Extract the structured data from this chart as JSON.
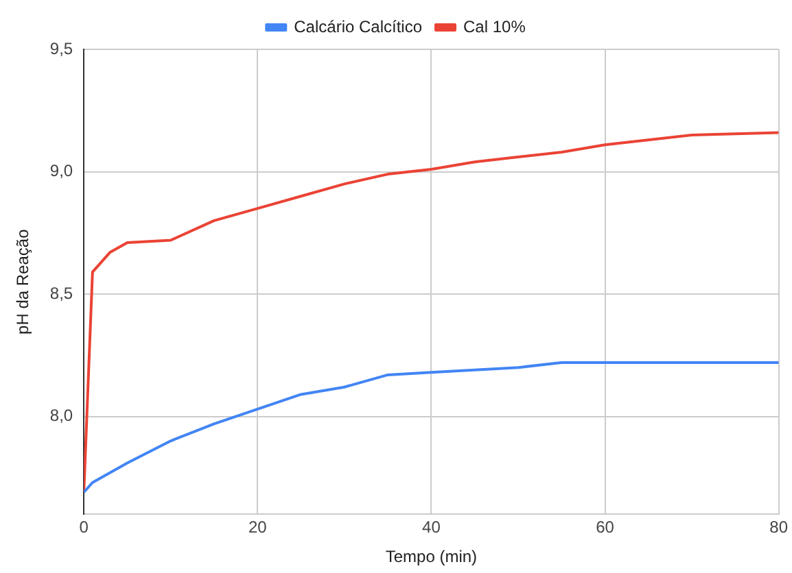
{
  "chart_data": {
    "type": "line",
    "xlabel": "Tempo (min)",
    "ylabel": "pH da Reação",
    "xlim": [
      0,
      80
    ],
    "xticks": [
      0,
      20,
      40,
      60,
      80
    ],
    "ylim": [
      7.6,
      9.5
    ],
    "yticks": [
      {
        "value": 8,
        "label": "8,0"
      },
      {
        "value": 8.5,
        "label": "8,5"
      },
      {
        "value": 9,
        "label": "9,0"
      },
      {
        "value": 9.5,
        "label": "9,5"
      }
    ],
    "grid": true,
    "legend": "top",
    "marker": "none",
    "line_style": "solid",
    "series": [
      {
        "name": "Calcário Calcítico",
        "color": "#4285f4",
        "x": [
          0,
          1,
          5,
          10,
          15,
          20,
          25,
          30,
          35,
          40,
          45,
          50,
          55,
          60,
          70,
          80
        ],
        "values": [
          7.69,
          7.73,
          7.81,
          7.9,
          7.97,
          8.03,
          8.09,
          8.12,
          8.17,
          8.18,
          8.19,
          8.2,
          8.22,
          8.22,
          8.22,
          8.22
        ]
      },
      {
        "name": "Cal 10%",
        "color": "#ea4335",
        "x": [
          0,
          1,
          3,
          5,
          10,
          15,
          20,
          25,
          30,
          35,
          40,
          45,
          50,
          55,
          60,
          70,
          80
        ],
        "values": [
          7.69,
          8.59,
          8.67,
          8.71,
          8.72,
          8.8,
          8.85,
          8.9,
          8.95,
          8.99,
          9.01,
          9.04,
          9.06,
          9.08,
          9.11,
          9.15,
          9.16
        ]
      }
    ]
  }
}
